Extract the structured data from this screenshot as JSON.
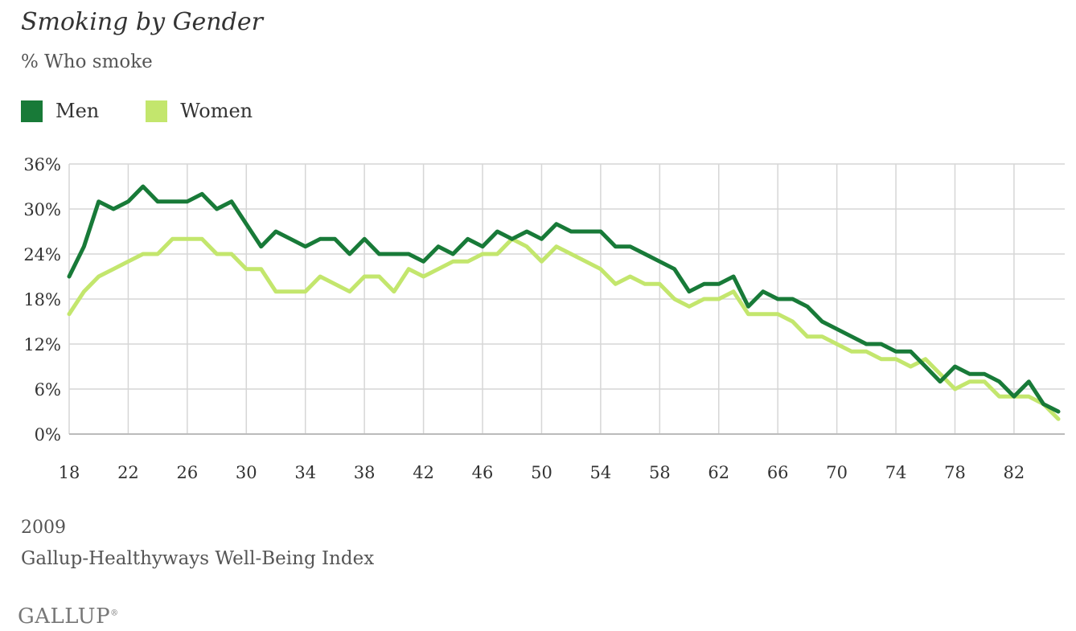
{
  "title": "Smoking by Gender",
  "subtitle": "% Who smoke",
  "legend": {
    "men": "Men",
    "women": "Women"
  },
  "colors": {
    "men": "#187a38",
    "women": "#c3e66d",
    "grid": "#d6d6d6"
  },
  "footer": {
    "year": "2009",
    "source": "Gallup-Healthyways Well-Being Index",
    "logo": "GALLUP"
  },
  "chart_data": {
    "type": "line",
    "title": "Smoking by Gender",
    "subtitle": "% Who smoke",
    "xlabel": "",
    "ylabel": "",
    "xlim": [
      18,
      85
    ],
    "ylim": [
      0,
      36
    ],
    "x_ticks": [
      "18",
      "22",
      "26",
      "30",
      "34",
      "38",
      "42",
      "46",
      "50",
      "54",
      "58",
      "62",
      "66",
      "70",
      "74",
      "78",
      "82"
    ],
    "y_ticks": [
      "0%",
      "6%",
      "12%",
      "18%",
      "24%",
      "30%",
      "36%"
    ],
    "grid": true,
    "legend_position": "top-left",
    "x": [
      18,
      19,
      20,
      21,
      22,
      23,
      24,
      25,
      26,
      27,
      28,
      29,
      30,
      31,
      32,
      33,
      34,
      35,
      36,
      37,
      38,
      39,
      40,
      41,
      42,
      43,
      44,
      45,
      46,
      47,
      48,
      49,
      50,
      51,
      52,
      53,
      54,
      55,
      56,
      57,
      58,
      59,
      60,
      61,
      62,
      63,
      64,
      65,
      66,
      67,
      68,
      69,
      70,
      71,
      72,
      73,
      74,
      75,
      76,
      77,
      78,
      79,
      80,
      81,
      82,
      83,
      84,
      85
    ],
    "series": [
      {
        "name": "Men",
        "values": [
          21,
          25,
          31,
          30,
          31,
          33,
          31,
          31,
          31,
          32,
          30,
          31,
          28,
          25,
          27,
          26,
          25,
          26,
          26,
          24,
          26,
          24,
          24,
          24,
          23,
          25,
          24,
          26,
          25,
          27,
          26,
          27,
          26,
          28,
          27,
          27,
          27,
          25,
          25,
          24,
          23,
          22,
          19,
          20,
          20,
          21,
          17,
          19,
          18,
          18,
          17,
          15,
          14,
          13,
          12,
          12,
          11,
          11,
          9,
          7,
          9,
          8,
          8,
          7,
          5,
          7,
          4,
          3
        ]
      },
      {
        "name": "Women",
        "values": [
          16,
          19,
          21,
          22,
          23,
          24,
          24,
          26,
          26,
          26,
          24,
          24,
          22,
          22,
          19,
          19,
          19,
          21,
          20,
          19,
          21,
          21,
          19,
          22,
          21,
          22,
          23,
          23,
          24,
          24,
          26,
          25,
          23,
          25,
          24,
          23,
          22,
          20,
          21,
          20,
          20,
          18,
          17,
          18,
          18,
          19,
          16,
          16,
          16,
          15,
          13,
          13,
          12,
          11,
          11,
          10,
          10,
          9,
          10,
          8,
          6,
          7,
          7,
          5,
          5,
          5,
          4,
          2
        ]
      }
    ]
  }
}
